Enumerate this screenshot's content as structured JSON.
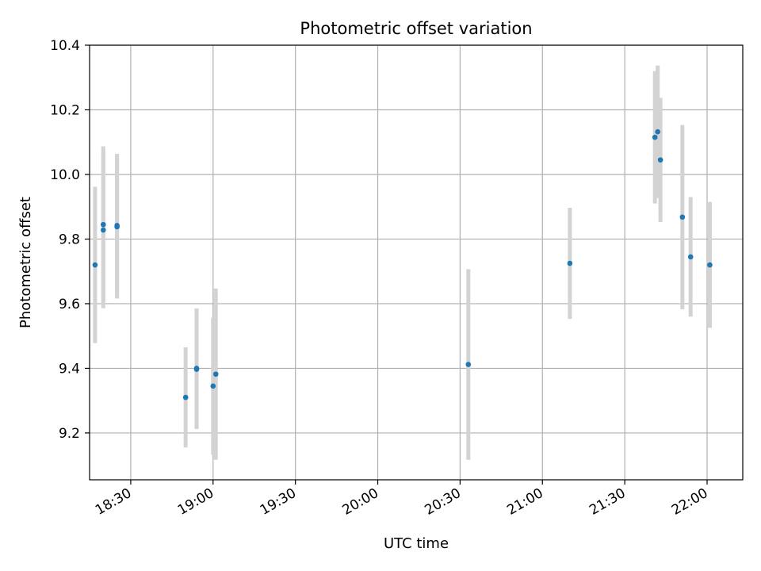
{
  "chart_data": {
    "type": "scatter",
    "title": "Photometric offset variation",
    "xlabel": "UTC time",
    "ylabel": "Photometric offset",
    "x_tick_labels": [
      "18:30",
      "19:00",
      "19:30",
      "20:00",
      "20:30",
      "21:00",
      "21:30",
      "22:00"
    ],
    "y_tick_labels": [
      "9.2",
      "9.4",
      "9.6",
      "9.8",
      "10.0",
      "10.2",
      "10.4"
    ],
    "xlim": [
      "18:15",
      "22:13"
    ],
    "ylim": [
      9.055,
      10.4
    ],
    "grid": true,
    "colors": {
      "points": "#1f77b4",
      "errorbars": "#d3d3d3",
      "grid": "#b0b0b0"
    },
    "points": [
      {
        "x": "18:17",
        "y": 9.72,
        "yerr": 0.242
      },
      {
        "x": "18:20",
        "y": 9.828,
        "yerr": 0.242
      },
      {
        "x": "18:20",
        "y": 9.845,
        "yerr": 0.242
      },
      {
        "x": "18:25",
        "y": 9.838,
        "yerr": 0.222
      },
      {
        "x": "18:25",
        "y": 9.842,
        "yerr": 0.222
      },
      {
        "x": "18:50",
        "y": 9.31,
        "yerr": 0.155
      },
      {
        "x": "18:54",
        "y": 9.4,
        "yerr": 0.185
      },
      {
        "x": "18:54",
        "y": 9.397,
        "yerr": 0.185
      },
      {
        "x": "19:00",
        "y": 9.345,
        "yerr": 0.212
      },
      {
        "x": "19:01",
        "y": 9.382,
        "yerr": 0.265
      },
      {
        "x": "20:33",
        "y": 9.412,
        "yerr": 0.295
      },
      {
        "x": "21:10",
        "y": 9.725,
        "yerr": 0.172
      },
      {
        "x": "21:41",
        "y": 10.115,
        "yerr": 0.205
      },
      {
        "x": "21:42",
        "y": 10.132,
        "yerr": 0.205
      },
      {
        "x": "21:43",
        "y": 10.045,
        "yerr": 0.192
      },
      {
        "x": "21:51",
        "y": 9.868,
        "yerr": 0.285
      },
      {
        "x": "21:54",
        "y": 9.745,
        "yerr": 0.185
      },
      {
        "x": "22:01",
        "y": 9.72,
        "yerr": 0.195
      }
    ]
  }
}
